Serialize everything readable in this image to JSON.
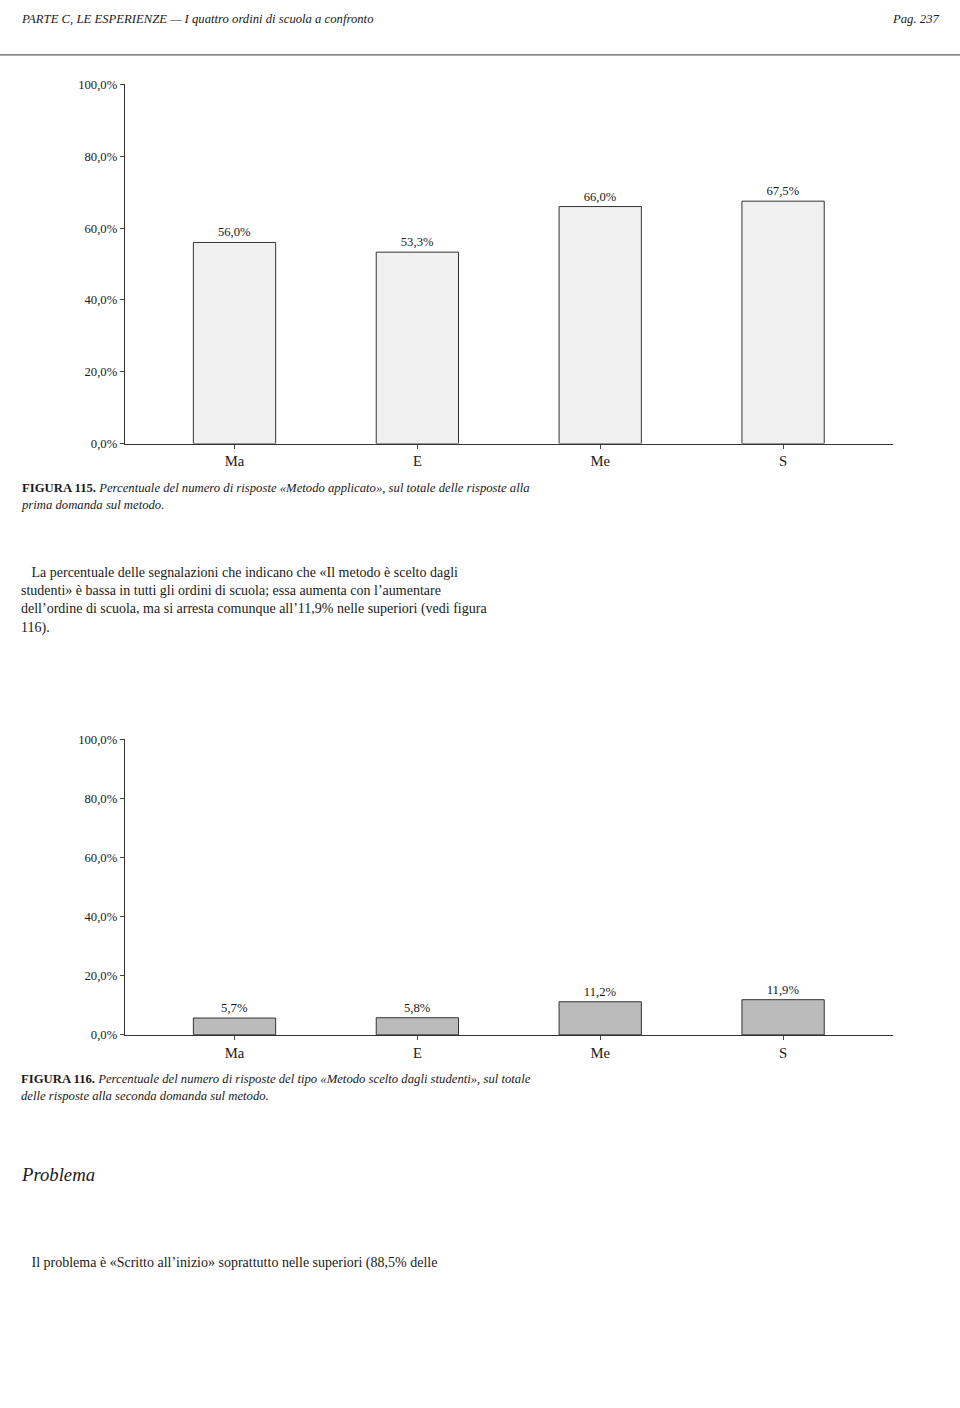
{
  "chart_data": [
    {
      "type": "bar",
      "categories": [
        "Ma",
        "E",
        "Me",
        "S"
      ],
      "values": [
        56.0,
        53.3,
        66.0,
        67.5
      ],
      "value_labels": [
        "56,0%",
        "53,3%",
        "66,0%",
        "67,5%"
      ],
      "data_labels": true,
      "color": "#f0f0f0",
      "ylim": [
        0,
        100
      ],
      "yticks": [
        {
          "value": 0,
          "label": "0,0%"
        },
        {
          "value": 20,
          "label": "20,0%"
        },
        {
          "value": 40,
          "label": "40,0%"
        },
        {
          "value": 60,
          "label": "60,0%"
        },
        {
          "value": 80,
          "label": "80,0%"
        },
        {
          "value": 100,
          "label": "100,0%"
        }
      ],
      "grid": false,
      "annotations": [
        "PARTE C, LE ESPERIENZE — I quattro ordini di scuola a confronto",
        "Pag. 237",
        "FIGURA 115.",
        " Percentuale del numero di risposte «Metodo applicato», sul totale delle risposte alla\nprima domanda sul metodo.",
        "   La percentuale delle segnalazioni che indicano che «Il metodo è scelto dagli\nstudenti» è bassa in tutti gli ordini di scuola; essa aumenta con l’aumentare\ndell’ordine di scuola, ma si arresta comunque all’11,9% nelle superiori (vedi figura\n116)."
      ]
    },
    {
      "type": "bar",
      "categories": [
        "Ma",
        "E",
        "Me",
        "S"
      ],
      "values": [
        5.7,
        5.8,
        11.2,
        11.9
      ],
      "value_labels": [
        "5,7%",
        "5,8%",
        "11,2%",
        "11,9%"
      ],
      "data_labels": true,
      "color": "#bbbbbb",
      "ylim": [
        0,
        100
      ],
      "yticks": [
        {
          "value": 0,
          "label": "0,0%"
        },
        {
          "value": 20,
          "label": "20,0%"
        },
        {
          "value": 40,
          "label": "40,0%"
        },
        {
          "value": 60,
          "label": "60,0%"
        },
        {
          "value": 80,
          "label": "80,0%"
        },
        {
          "value": 100,
          "label": "100,0%"
        }
      ],
      "grid": false,
      "annotations": [
        "FIGURA 116.",
        " Percentuale del numero di risposte del tipo «Metodo scelto dagli studenti», sul totale\ndelle risposte alla seconda domanda sul metodo.",
        "Problema",
        "   Il problema è «Scritto all’inizio» soprattutto nelle superiori (88,5% delle"
      ]
    }
  ]
}
